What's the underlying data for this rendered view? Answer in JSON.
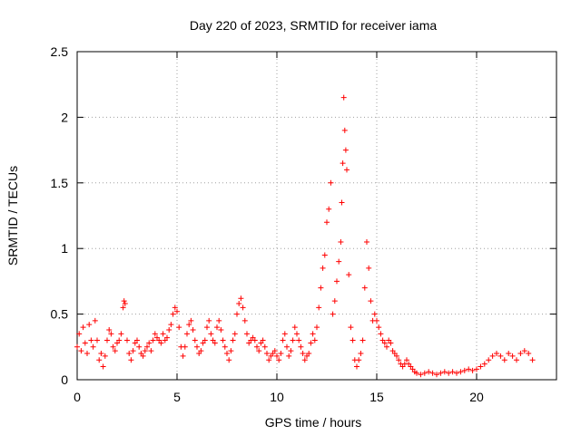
{
  "chart_data": {
    "type": "scatter",
    "title": "Day 220 of 2023, SRMTID for receiver iama",
    "xlabel": "GPS time / hours",
    "ylabel": "SRMTID / TECUs",
    "xlim": [
      0,
      24
    ],
    "ylim": [
      0,
      2.5
    ],
    "xticks": [
      0,
      5,
      10,
      15,
      20
    ],
    "yticks": [
      0,
      0.5,
      1,
      1.5,
      2,
      2.5
    ],
    "xtick_labels": [
      "0",
      "5",
      "10",
      "15",
      "20"
    ],
    "ytick_labels": [
      "0",
      "0.5",
      "1",
      "1.5",
      "2",
      "2.5"
    ],
    "grid": true,
    "marker": "+",
    "series_color": "#ff0000",
    "series": [
      {
        "name": "SRMTID",
        "points": [
          [
            0.0,
            0.25
          ],
          [
            0.1,
            0.35
          ],
          [
            0.2,
            0.22
          ],
          [
            0.3,
            0.4
          ],
          [
            0.4,
            0.28
          ],
          [
            0.5,
            0.2
          ],
          [
            0.6,
            0.42
          ],
          [
            0.7,
            0.3
          ],
          [
            0.8,
            0.25
          ],
          [
            0.9,
            0.45
          ],
          [
            1.0,
            0.3
          ],
          [
            1.1,
            0.15
          ],
          [
            1.2,
            0.2
          ],
          [
            1.3,
            0.1
          ],
          [
            1.4,
            0.18
          ],
          [
            1.5,
            0.3
          ],
          [
            1.6,
            0.38
          ],
          [
            1.7,
            0.35
          ],
          [
            1.8,
            0.25
          ],
          [
            1.9,
            0.22
          ],
          [
            2.0,
            0.28
          ],
          [
            2.1,
            0.3
          ],
          [
            2.2,
            0.35
          ],
          [
            2.3,
            0.55
          ],
          [
            2.35,
            0.6
          ],
          [
            2.4,
            0.58
          ],
          [
            2.5,
            0.3
          ],
          [
            2.6,
            0.2
          ],
          [
            2.7,
            0.15
          ],
          [
            2.8,
            0.22
          ],
          [
            2.9,
            0.28
          ],
          [
            3.0,
            0.3
          ],
          [
            3.1,
            0.25
          ],
          [
            3.2,
            0.2
          ],
          [
            3.3,
            0.18
          ],
          [
            3.4,
            0.22
          ],
          [
            3.5,
            0.25
          ],
          [
            3.6,
            0.28
          ],
          [
            3.7,
            0.22
          ],
          [
            3.8,
            0.3
          ],
          [
            3.9,
            0.35
          ],
          [
            4.0,
            0.32
          ],
          [
            4.1,
            0.3
          ],
          [
            4.2,
            0.28
          ],
          [
            4.3,
            0.35
          ],
          [
            4.4,
            0.3
          ],
          [
            4.5,
            0.32
          ],
          [
            4.6,
            0.38
          ],
          [
            4.7,
            0.42
          ],
          [
            4.8,
            0.5
          ],
          [
            4.9,
            0.55
          ],
          [
            5.0,
            0.52
          ],
          [
            5.1,
            0.4
          ],
          [
            5.2,
            0.25
          ],
          [
            5.3,
            0.18
          ],
          [
            5.4,
            0.25
          ],
          [
            5.5,
            0.35
          ],
          [
            5.6,
            0.42
          ],
          [
            5.7,
            0.45
          ],
          [
            5.8,
            0.38
          ],
          [
            5.9,
            0.3
          ],
          [
            6.0,
            0.25
          ],
          [
            6.1,
            0.2
          ],
          [
            6.2,
            0.22
          ],
          [
            6.3,
            0.28
          ],
          [
            6.4,
            0.3
          ],
          [
            6.5,
            0.4
          ],
          [
            6.6,
            0.45
          ],
          [
            6.7,
            0.35
          ],
          [
            6.8,
            0.3
          ],
          [
            6.9,
            0.28
          ],
          [
            7.0,
            0.4
          ],
          [
            7.1,
            0.45
          ],
          [
            7.2,
            0.38
          ],
          [
            7.3,
            0.3
          ],
          [
            7.4,
            0.25
          ],
          [
            7.5,
            0.2
          ],
          [
            7.6,
            0.15
          ],
          [
            7.7,
            0.22
          ],
          [
            7.8,
            0.3
          ],
          [
            7.9,
            0.35
          ],
          [
            8.0,
            0.5
          ],
          [
            8.1,
            0.58
          ],
          [
            8.2,
            0.62
          ],
          [
            8.3,
            0.55
          ],
          [
            8.4,
            0.45
          ],
          [
            8.5,
            0.35
          ],
          [
            8.6,
            0.28
          ],
          [
            8.7,
            0.3
          ],
          [
            8.8,
            0.32
          ],
          [
            8.9,
            0.3
          ],
          [
            9.0,
            0.25
          ],
          [
            9.1,
            0.22
          ],
          [
            9.2,
            0.28
          ],
          [
            9.3,
            0.3
          ],
          [
            9.4,
            0.25
          ],
          [
            9.5,
            0.2
          ],
          [
            9.6,
            0.15
          ],
          [
            9.7,
            0.18
          ],
          [
            9.8,
            0.2
          ],
          [
            9.9,
            0.22
          ],
          [
            10.0,
            0.18
          ],
          [
            10.1,
            0.15
          ],
          [
            10.2,
            0.2
          ],
          [
            10.3,
            0.3
          ],
          [
            10.4,
            0.35
          ],
          [
            10.5,
            0.25
          ],
          [
            10.6,
            0.18
          ],
          [
            10.7,
            0.22
          ],
          [
            10.8,
            0.3
          ],
          [
            10.9,
            0.4
          ],
          [
            11.0,
            0.35
          ],
          [
            11.1,
            0.3
          ],
          [
            11.2,
            0.25
          ],
          [
            11.3,
            0.2
          ],
          [
            11.4,
            0.15
          ],
          [
            11.5,
            0.18
          ],
          [
            11.6,
            0.2
          ],
          [
            11.7,
            0.28
          ],
          [
            11.8,
            0.35
          ],
          [
            11.9,
            0.3
          ],
          [
            12.0,
            0.4
          ],
          [
            12.1,
            0.55
          ],
          [
            12.2,
            0.7
          ],
          [
            12.3,
            0.85
          ],
          [
            12.4,
            0.95
          ],
          [
            12.5,
            1.2
          ],
          [
            12.6,
            1.3
          ],
          [
            12.7,
            1.5
          ],
          [
            12.8,
            0.5
          ],
          [
            12.9,
            0.6
          ],
          [
            13.0,
            0.75
          ],
          [
            13.1,
            0.9
          ],
          [
            13.2,
            1.05
          ],
          [
            13.25,
            1.35
          ],
          [
            13.3,
            1.65
          ],
          [
            13.35,
            2.15
          ],
          [
            13.4,
            1.9
          ],
          [
            13.45,
            1.75
          ],
          [
            13.5,
            1.6
          ],
          [
            13.6,
            0.8
          ],
          [
            13.7,
            0.4
          ],
          [
            13.8,
            0.3
          ],
          [
            13.9,
            0.15
          ],
          [
            14.0,
            0.1
          ],
          [
            14.1,
            0.15
          ],
          [
            14.2,
            0.2
          ],
          [
            14.3,
            0.3
          ],
          [
            14.4,
            0.7
          ],
          [
            14.5,
            1.05
          ],
          [
            14.6,
            0.85
          ],
          [
            14.7,
            0.6
          ],
          [
            14.8,
            0.45
          ],
          [
            14.9,
            0.5
          ],
          [
            15.0,
            0.45
          ],
          [
            15.1,
            0.4
          ],
          [
            15.2,
            0.35
          ],
          [
            15.3,
            0.3
          ],
          [
            15.4,
            0.28
          ],
          [
            15.5,
            0.25
          ],
          [
            15.6,
            0.3
          ],
          [
            15.7,
            0.28
          ],
          [
            15.8,
            0.22
          ],
          [
            15.9,
            0.2
          ],
          [
            16.0,
            0.18
          ],
          [
            16.1,
            0.15
          ],
          [
            16.2,
            0.12
          ],
          [
            16.3,
            0.1
          ],
          [
            16.4,
            0.12
          ],
          [
            16.5,
            0.15
          ],
          [
            16.6,
            0.12
          ],
          [
            16.7,
            0.1
          ],
          [
            16.8,
            0.08
          ],
          [
            16.9,
            0.06
          ],
          [
            17.0,
            0.05
          ],
          [
            17.2,
            0.04
          ],
          [
            17.4,
            0.05
          ],
          [
            17.6,
            0.06
          ],
          [
            17.8,
            0.05
          ],
          [
            18.0,
            0.04
          ],
          [
            18.2,
            0.05
          ],
          [
            18.4,
            0.06
          ],
          [
            18.6,
            0.05
          ],
          [
            18.8,
            0.06
          ],
          [
            19.0,
            0.05
          ],
          [
            19.2,
            0.06
          ],
          [
            19.4,
            0.07
          ],
          [
            19.6,
            0.08
          ],
          [
            19.8,
            0.07
          ],
          [
            20.0,
            0.08
          ],
          [
            20.2,
            0.1
          ],
          [
            20.4,
            0.12
          ],
          [
            20.6,
            0.15
          ],
          [
            20.8,
            0.18
          ],
          [
            21.0,
            0.2
          ],
          [
            21.2,
            0.18
          ],
          [
            21.4,
            0.15
          ],
          [
            21.6,
            0.2
          ],
          [
            21.8,
            0.18
          ],
          [
            22.0,
            0.15
          ],
          [
            22.2,
            0.2
          ],
          [
            22.4,
            0.22
          ],
          [
            22.6,
            0.2
          ],
          [
            22.8,
            0.15
          ]
        ]
      }
    ]
  }
}
